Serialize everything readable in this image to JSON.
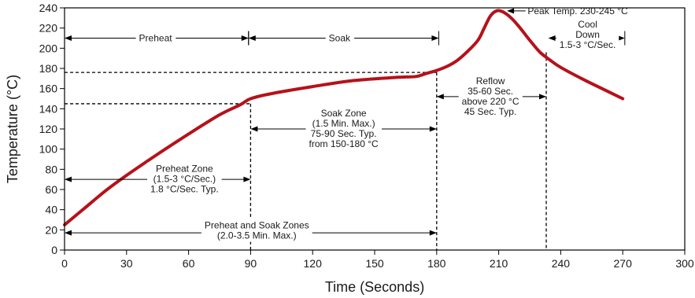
{
  "chart_data": {
    "type": "line",
    "xlabel": "Time (Seconds)",
    "ylabel": "Temperature (°C)",
    "xlim": [
      0,
      300
    ],
    "ylim": [
      0,
      240
    ],
    "xticks": [
      0,
      30,
      60,
      90,
      120,
      150,
      180,
      210,
      240,
      270,
      300
    ],
    "yticks": [
      0,
      20,
      40,
      60,
      80,
      100,
      120,
      140,
      160,
      180,
      200,
      220,
      240
    ],
    "grid": false,
    "series": [
      {
        "color": "#b5121b",
        "x": [
          0,
          10,
          20,
          30,
          45,
          60,
          75,
          85,
          90,
          100,
          120,
          140,
          160,
          170,
          175,
          180,
          185,
          190,
          195,
          200,
          203,
          206,
          209,
          212,
          216,
          220,
          225,
          230,
          235,
          240,
          250,
          260,
          270
        ],
        "y": [
          25,
          42,
          59,
          74,
          95,
          115,
          134,
          144,
          150,
          155,
          162,
          168,
          171,
          172,
          175,
          178,
          182,
          188,
          197,
          208,
          220,
          232,
          237,
          236,
          230,
          221,
          208,
          196,
          188,
          181,
          170,
          160,
          150
        ]
      }
    ],
    "dashed_lines": [
      {
        "from": [
          0,
          176
        ],
        "to": [
          180,
          176
        ]
      },
      {
        "from": [
          0,
          145
        ],
        "to": [
          90,
          145
        ]
      },
      {
        "from": [
          90,
          145
        ],
        "to": [
          90,
          0
        ]
      },
      {
        "from": [
          180,
          176
        ],
        "to": [
          180,
          0
        ]
      },
      {
        "from": [
          233,
          196
        ],
        "to": [
          233,
          0
        ]
      }
    ],
    "span_arrows": [
      {
        "x1": 0,
        "x2": 89,
        "y": 210,
        "start_tick": true,
        "end_tick": true
      },
      {
        "x1": 89,
        "x2": 181,
        "y": 210,
        "start_tick": true,
        "end_tick": true
      },
      {
        "x1": 234,
        "x2": 271,
        "y": 210,
        "start_tick": false,
        "end_tick": true
      },
      {
        "x1": 0,
        "x2": 90,
        "y": 70,
        "start_tick": false,
        "end_tick": false
      },
      {
        "x1": 90,
        "x2": 180,
        "y": 120,
        "start_tick": false,
        "end_tick": false
      },
      {
        "x1": 180,
        "x2": 233,
        "y": 152,
        "start_tick": false,
        "end_tick": false
      },
      {
        "x1": 0,
        "x2": 180,
        "y": 17,
        "start_tick": false,
        "end_tick": false
      }
    ],
    "peak_arrow": {
      "from": [
        223,
        237
      ],
      "to": [
        214,
        237
      ]
    },
    "annotations": [
      {
        "key": "preheat",
        "lines": [
          "Preheat"
        ],
        "x": 44,
        "y": 210,
        "anchor": "middle",
        "bg": true
      },
      {
        "key": "soak",
        "lines": [
          "Soak"
        ],
        "x": 133,
        "y": 210,
        "anchor": "middle",
        "bg": true
      },
      {
        "key": "cool",
        "lines": [
          "Cool",
          "Down",
          "1.5-3 °C/Sec."
        ],
        "x": 253,
        "y": 213,
        "anchor": "middle",
        "bg": true
      },
      {
        "key": "peak",
        "lines": [
          "Peak Temp. 230-245 °C"
        ],
        "x": 224,
        "y": 237,
        "anchor": "start",
        "bg": false
      },
      {
        "key": "reflow",
        "lines": [
          "Reflow",
          "35-60 Sec.",
          "above 220 °C",
          "45 Sec. Typ."
        ],
        "x": 206,
        "y": 152,
        "anchor": "middle",
        "bg": true
      },
      {
        "key": "soak-zone",
        "lines": [
          "Soak Zone",
          "(1.5 Min. Max.)",
          "75-90 Sec. Typ.",
          "from 150-180 °C"
        ],
        "x": 135,
        "y": 120,
        "anchor": "middle",
        "bg": true
      },
      {
        "key": "preheat-zone",
        "lines": [
          "Preheat Zone",
          "(1.5-3 °C/Sec.)",
          "1.8 °C/Sec. Typ."
        ],
        "x": 58,
        "y": 70,
        "anchor": "middle",
        "bg": true
      },
      {
        "key": "preheat-soak-zones",
        "lines": [
          "Preheat and Soak Zones",
          "(2.0-3.5 Min. Max.)"
        ],
        "x": 93,
        "y": 19,
        "anchor": "middle",
        "bg": true
      }
    ]
  }
}
